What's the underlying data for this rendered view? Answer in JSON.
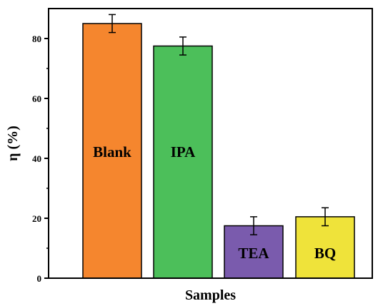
{
  "chart_data": {
    "type": "bar",
    "categories": [
      "Blank",
      "IPA",
      "TEA",
      "BQ"
    ],
    "values": [
      85,
      77.5,
      17.5,
      20.5
    ],
    "errors": [
      3,
      3,
      3,
      3
    ],
    "colors": [
      "#F5862E",
      "#4CBF5A",
      "#7A5BAD",
      "#EFE33A"
    ],
    "bar_labels": [
      "Blank",
      "IPA",
      "TEA",
      "BQ"
    ],
    "xlabel": "Samples",
    "ylabel": "η (%)",
    "ylim": [
      0,
      90
    ],
    "yticks": [
      0,
      20,
      40,
      60,
      80
    ],
    "grid": false,
    "legend": "none"
  }
}
